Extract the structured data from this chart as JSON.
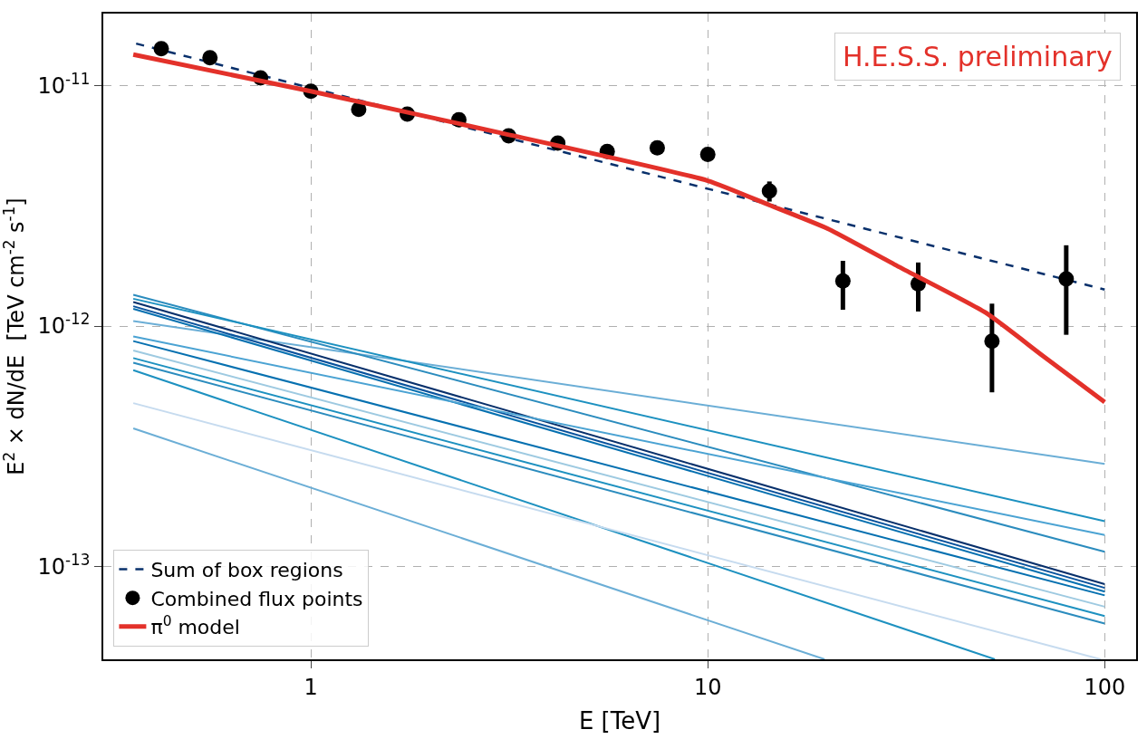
{
  "chart_data": {
    "type": "line",
    "xlabel": "E [TeV]",
    "ylabel": "E$^{2}$ × dN/dE  [TeV cm$^{-2}$ s$^{-1}$]",
    "log": "xy",
    "grid": true,
    "legend": "bottom left",
    "xlim": [
      0.3,
      120
    ],
    "ylim": [
      4.1e-14,
      2e-11
    ],
    "xticks": [
      1,
      10,
      100
    ],
    "yticks": [
      {
        "value": 1e-13,
        "label": "10$^{-13}$"
      },
      {
        "value": 1e-12,
        "label": "10$^{-12}$"
      },
      {
        "value": 1e-11,
        "label": "10$^{-11}$"
      }
    ],
    "annotations": [
      "H.E.S.S. preliminary"
    ],
    "series": [
      {
        "color": "#6baed6",
        "x": [
          0.357,
          100
        ],
        "values": [
          1.05e-12,
          2.67e-13
        ]
      },
      {
        "color": "#2b8cbe",
        "x": [
          0.357,
          100
        ],
        "values": [
          1.35e-12,
          1.15e-13
        ]
      },
      {
        "color": "#1d91c0",
        "x": [
          0.357,
          100
        ],
        "values": [
          1.3e-12,
          1.54e-13
        ]
      },
      {
        "color": "#08306b",
        "x": [
          0.357,
          100
        ],
        "values": [
          1.26e-12,
          8.43e-14
        ]
      },
      {
        "color": "#08519c",
        "x": [
          0.357,
          100
        ],
        "values": [
          1.21e-12,
          8.13e-14
        ]
      },
      {
        "color": "#0570b0",
        "x": [
          0.357,
          100
        ],
        "values": [
          1.18e-12,
          7.85e-14
        ]
      },
      {
        "color": "#4ba3d3",
        "x": [
          0.357,
          100
        ],
        "values": [
          9.05e-13,
          1.35e-13
        ]
      },
      {
        "color": "#0570b0",
        "x": [
          0.357,
          100
        ],
        "values": [
          8.66e-13,
          7.57e-14
        ]
      },
      {
        "color": "#9ecae1",
        "x": [
          0.357,
          100
        ],
        "values": [
          7.91e-13,
          6.79e-14
        ]
      },
      {
        "color": "#1d91c0",
        "x": [
          0.357,
          100
        ],
        "values": [
          7.36e-13,
          6.21e-14
        ]
      },
      {
        "color": "#2b8cbe",
        "x": [
          0.357,
          100
        ],
        "values": [
          7.04e-13,
          5.78e-14
        ]
      },
      {
        "color": "#1d91c0",
        "x": [
          0.357,
          52.9
        ],
        "values": [
          6.55e-13,
          4.1e-14
        ]
      },
      {
        "color": "#c6dbef",
        "x": [
          0.357,
          97.7
        ],
        "values": [
          4.78e-13,
          4.1e-14
        ]
      },
      {
        "color": "#6baed6",
        "x": [
          0.357,
          19.7
        ],
        "values": [
          3.75e-13,
          4.1e-14
        ]
      },
      {
        "name": "Sum of box regions",
        "color": "#08306b",
        "line_style": "dashed",
        "x": [
          0.363,
          100
        ],
        "values": [
          1.5e-11,
          1.42e-12
        ]
      },
      {
        "type": "scatter",
        "name": "Combined flux points",
        "color": "#000000",
        "marker": "circle",
        "x": [
          0.42,
          0.557,
          0.747,
          1.0,
          1.32,
          1.75,
          2.36,
          3.15,
          4.19,
          5.58,
          7.46,
          10,
          14.3,
          21.9,
          33.9,
          52.0,
          80.0
        ],
        "values": [
          1.43e-11,
          1.31e-11,
          1.08e-11,
          9.5e-12,
          7.98e-12,
          7.63e-12,
          7.23e-12,
          6.2e-12,
          5.78e-12,
          5.33e-12,
          5.52e-12,
          5.19e-12,
          3.65e-12,
          1.54e-12,
          1.5e-12,
          8.66e-13,
          1.57e-12
        ],
        "errors": [
          null,
          null,
          null,
          null,
          null,
          null,
          null,
          null,
          null,
          null,
          null,
          null,
          [
            3.3e-12,
            4e-12
          ],
          [
            1.17e-12,
            1.87e-12
          ],
          [
            1.15e-12,
            1.84e-12
          ],
          [
            5.3e-13,
            1.24e-12
          ],
          [
            9.2e-13,
            2.17e-12
          ]
        ]
      },
      {
        "name": "π$^{0}$ model",
        "color": "#e3312a",
        "x": [
          0.357,
          1,
          3,
          10,
          14.3,
          20,
          30,
          50,
          70,
          100
        ],
        "values": [
          1.35e-11,
          9.5e-12,
          6.38e-12,
          4.03e-12,
          3.19e-12,
          2.55e-12,
          1.78e-12,
          1.14e-12,
          7.5e-13,
          4.83e-13
        ]
      }
    ]
  }
}
